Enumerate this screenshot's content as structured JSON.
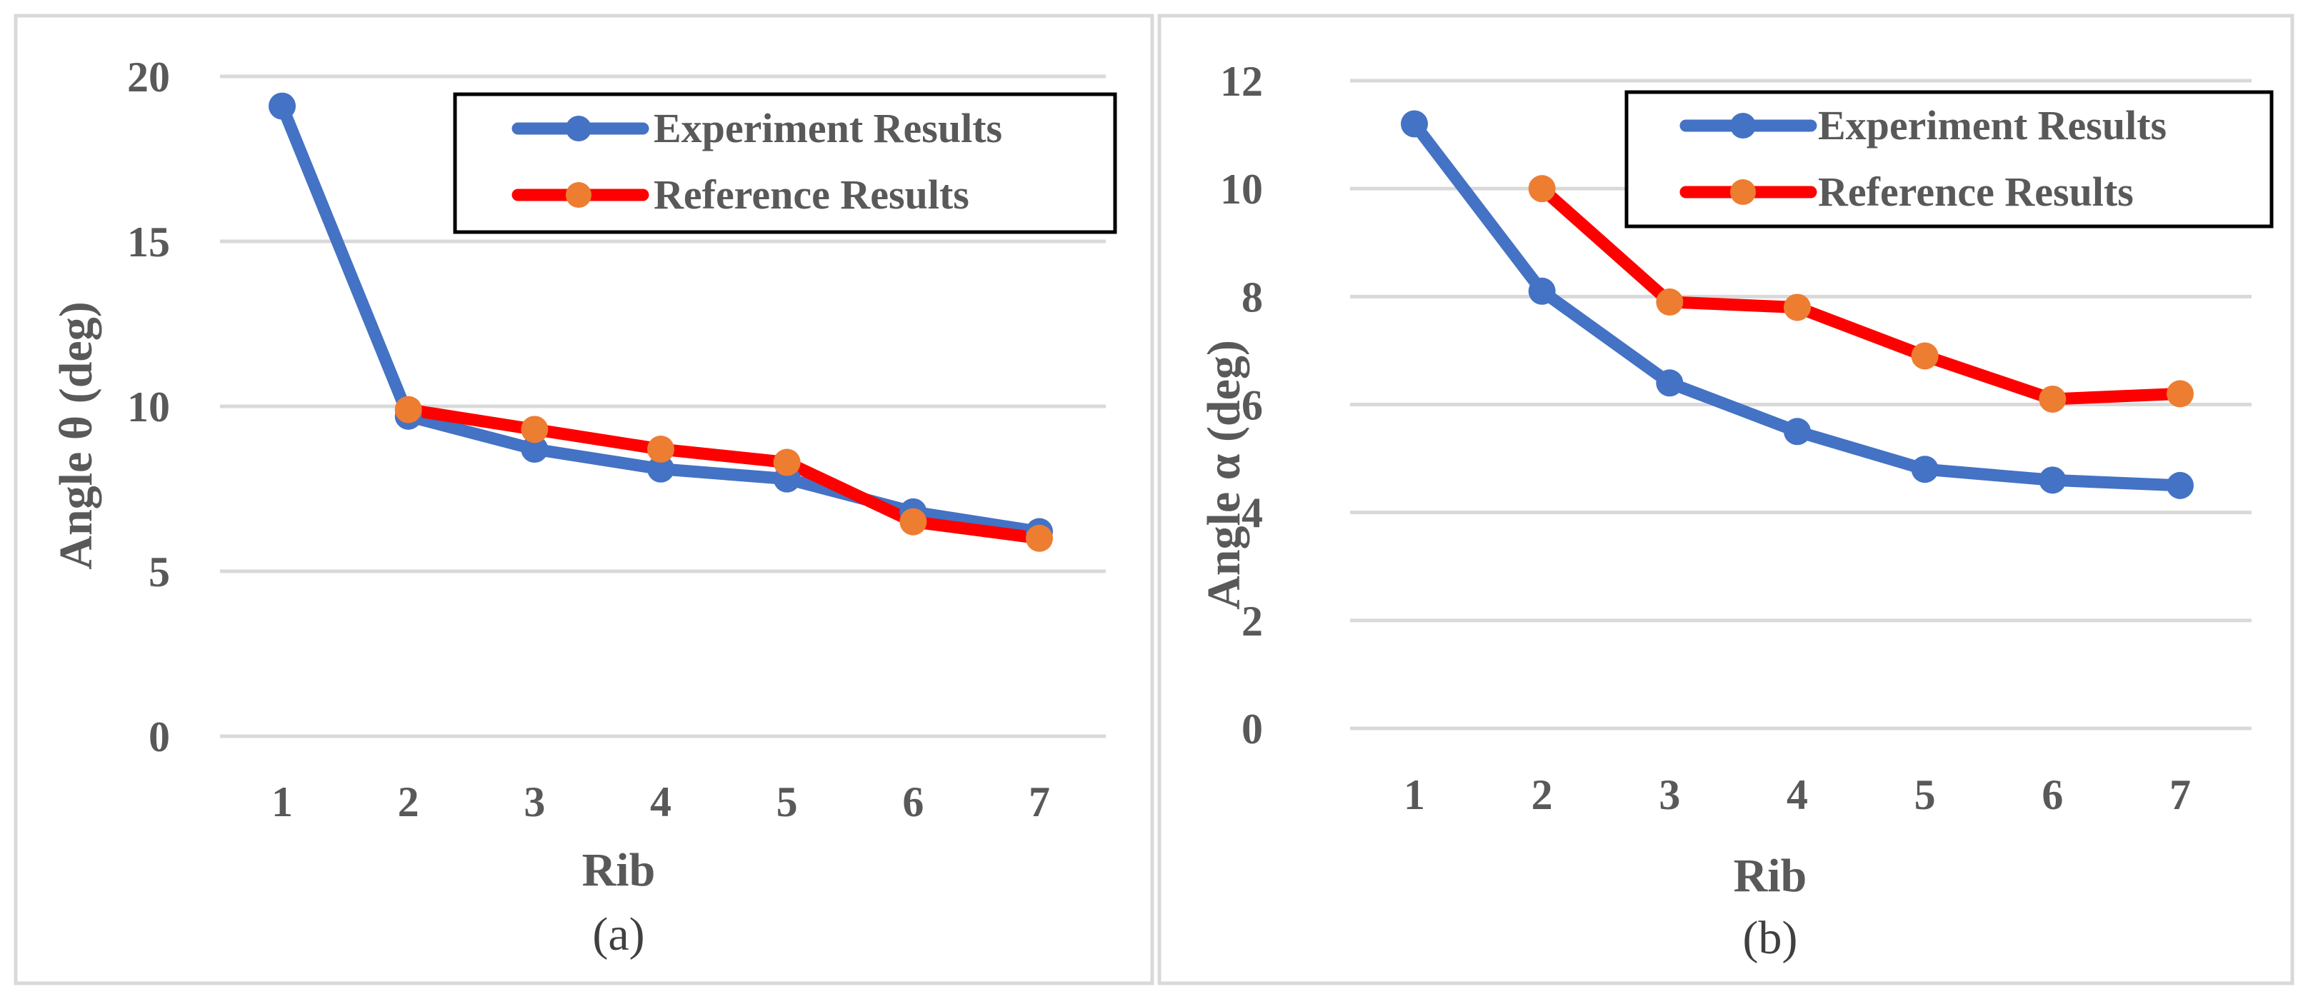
{
  "chart_data": [
    {
      "type": "line",
      "panel_label": "(a)",
      "xlabel": "Rib",
      "ylabel": "Angle θ (deg)",
      "categories": [
        "1",
        "2",
        "3",
        "4",
        "5",
        "6",
        "7"
      ],
      "ylim": [
        0,
        20
      ],
      "yticks": [
        "0",
        "5",
        "10",
        "15",
        "20"
      ],
      "grid": true,
      "legend_position": "top-right",
      "series": [
        {
          "name": "Experiment Results",
          "line_color": "#4472C4",
          "marker_color": "#4472C4",
          "values": [
            19.1,
            9.7,
            8.7,
            8.1,
            7.8,
            6.8,
            6.2
          ]
        },
        {
          "name": "Reference Results",
          "line_color": "#FF0000",
          "marker_color": "#ED7D31",
          "values": [
            null,
            9.9,
            9.3,
            8.7,
            8.3,
            6.5,
            6.0
          ]
        }
      ]
    },
    {
      "type": "line",
      "panel_label": "(b)",
      "xlabel": "Rib",
      "ylabel": "Angle α (deg)",
      "categories": [
        "1",
        "2",
        "3",
        "4",
        "5",
        "6",
        "7"
      ],
      "ylim": [
        0,
        12
      ],
      "yticks": [
        "0",
        "2",
        "4",
        "6",
        "8",
        "10",
        "12"
      ],
      "grid": true,
      "legend_position": "top-right",
      "series": [
        {
          "name": "Experiment Results",
          "line_color": "#4472C4",
          "marker_color": "#4472C4",
          "values": [
            11.2,
            8.1,
            6.4,
            5.5,
            4.8,
            4.6,
            4.5
          ]
        },
        {
          "name": "Reference Results",
          "line_color": "#FF0000",
          "marker_color": "#ED7D31",
          "values": [
            null,
            10.0,
            7.9,
            7.8,
            6.9,
            6.1,
            6.2
          ]
        }
      ]
    }
  ]
}
